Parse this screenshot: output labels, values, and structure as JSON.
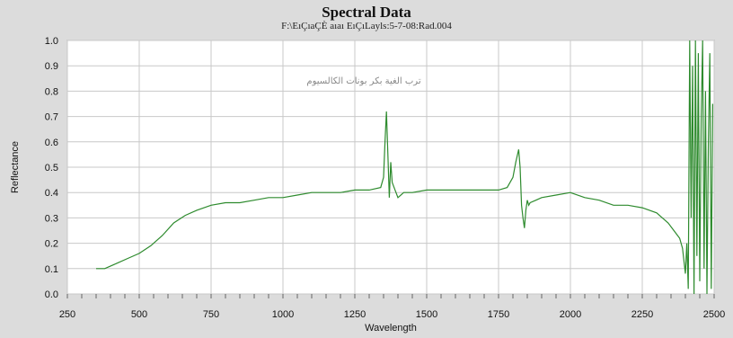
{
  "title": "Spectral Data",
  "subtitle": "F:\\EıÇıaÇÈ aıaı EıÇıLayls:5-7-08:Rad.004",
  "colors": {
    "background": "#dcdcdc",
    "plot_bg": "#ffffff",
    "grid": "#c8c8c8",
    "series": "#2e8b2e"
  },
  "chart_data": {
    "type": "line",
    "title": "Spectral Data",
    "xlabel": "Wavelength",
    "ylabel": "Reflectance",
    "xlim": [
      250,
      2500
    ],
    "ylim": [
      0.0,
      1.0
    ],
    "xticks": [
      "250",
      "500",
      "750",
      "1000",
      "1250",
      "1500",
      "1750",
      "2000",
      "2250",
      "2500"
    ],
    "yticks": [
      "0.0",
      "0.1",
      "0.2",
      "0.3",
      "0.4",
      "0.5",
      "0.6",
      "0.7",
      "0.8",
      "0.9",
      "1.0"
    ],
    "annotation": "ترب الغية بكر بونات الكالسيوم",
    "grid": true,
    "series": [
      {
        "x": [
          350,
          380,
          420,
          460,
          500,
          540,
          580,
          620,
          660,
          700,
          750,
          800,
          850,
          900,
          950,
          1000,
          1050,
          1100,
          1150,
          1200,
          1250,
          1300,
          1340,
          1350,
          1355,
          1360,
          1365,
          1370,
          1375,
          1380,
          1390,
          1400,
          1420,
          1450,
          1500,
          1550,
          1600,
          1650,
          1700,
          1750,
          1780,
          1800,
          1810,
          1820,
          1825,
          1830,
          1835,
          1840,
          1845,
          1850,
          1855,
          1860,
          1880,
          1900,
          1950,
          2000,
          2050,
          2100,
          2150,
          2200,
          2250,
          2300,
          2320,
          2340,
          2360,
          2380,
          2390,
          2400,
          2405,
          2410,
          2415,
          2420,
          2425,
          2430,
          2435,
          2440,
          2445,
          2450,
          2455,
          2460,
          2465,
          2470,
          2475,
          2480,
          2485,
          2490,
          2495
        ],
        "y": [
          0.1,
          0.1,
          0.12,
          0.14,
          0.16,
          0.19,
          0.23,
          0.28,
          0.31,
          0.33,
          0.35,
          0.36,
          0.36,
          0.37,
          0.38,
          0.38,
          0.39,
          0.4,
          0.4,
          0.4,
          0.41,
          0.41,
          0.42,
          0.46,
          0.6,
          0.72,
          0.55,
          0.38,
          0.52,
          0.44,
          0.41,
          0.38,
          0.4,
          0.4,
          0.41,
          0.41,
          0.41,
          0.41,
          0.41,
          0.41,
          0.42,
          0.46,
          0.52,
          0.57,
          0.5,
          0.35,
          0.3,
          0.26,
          0.33,
          0.37,
          0.35,
          0.36,
          0.37,
          0.38,
          0.39,
          0.4,
          0.38,
          0.37,
          0.35,
          0.35,
          0.34,
          0.32,
          0.3,
          0.28,
          0.25,
          0.22,
          0.18,
          0.08,
          0.2,
          0.02,
          1.0,
          0.3,
          0.9,
          0.0,
          1.0,
          0.15,
          0.95,
          0.05,
          0.7,
          1.0,
          0.1,
          0.8,
          0.0,
          0.6,
          0.95,
          0.02,
          0.75
        ]
      }
    ]
  }
}
